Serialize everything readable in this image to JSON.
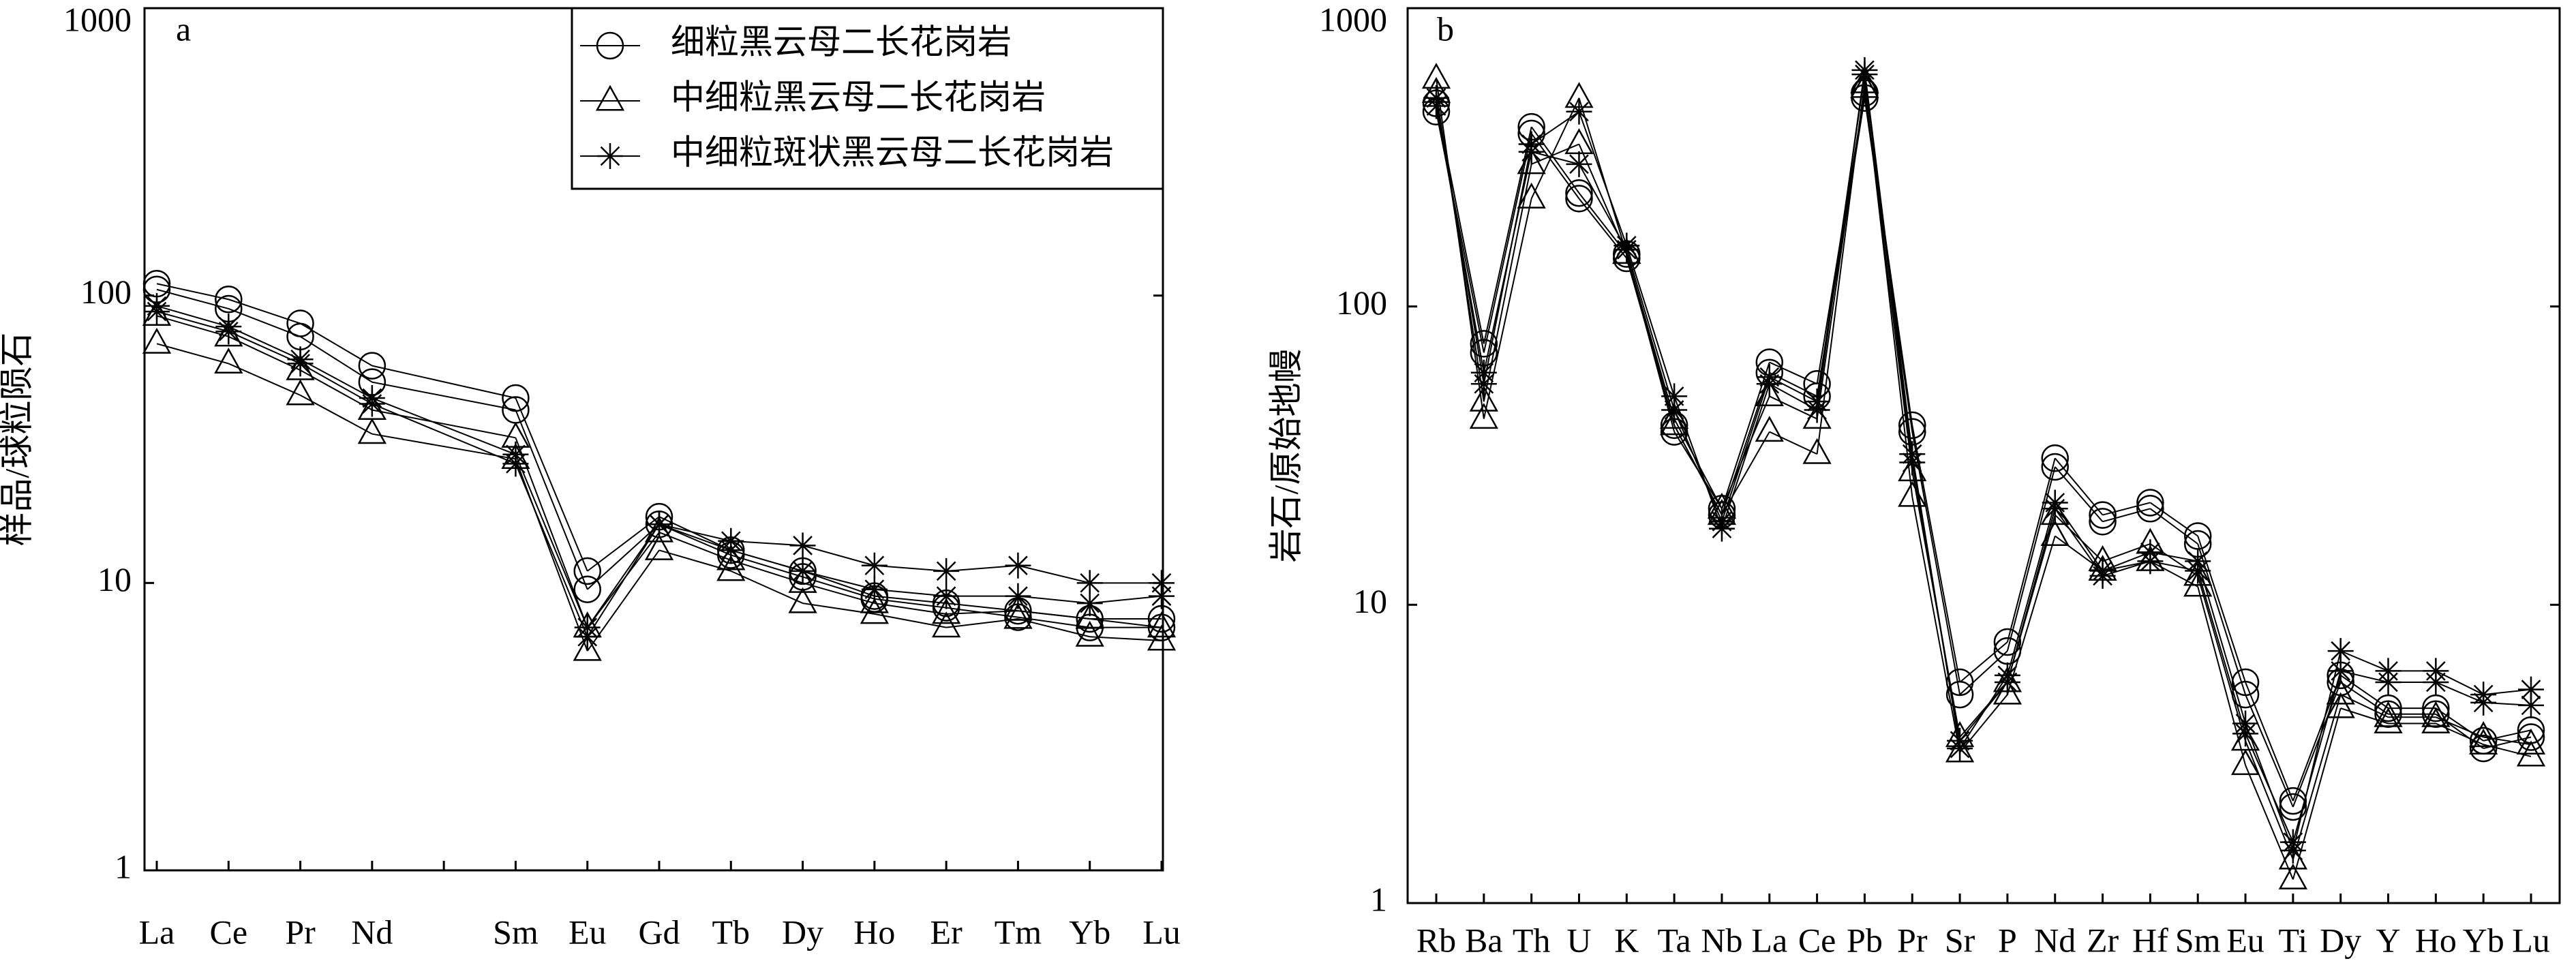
{
  "chart_data": [
    {
      "type": "line",
      "panel_label": "a",
      "ylabel": "样品/球粒陨石",
      "log_scale": true,
      "ylim": [
        1,
        1000
      ],
      "yticks": [
        1,
        10,
        100,
        1000
      ],
      "categories": [
        "La",
        "Ce",
        "Pr",
        "Nd",
        null,
        "Sm",
        "Eu",
        "Gd",
        "Tb",
        "Dy",
        "Ho",
        "Er",
        "Tm",
        "Yb",
        "Lu"
      ],
      "legend": "upper right",
      "series": [
        {
          "name": "细粒黑云母二长花岗岩",
          "marker": "circle",
          "color": "#000000",
          "samples": [
            [
              110,
              97,
              80,
              57,
              null,
              44,
              11,
              17,
              13,
              11,
              9,
              8.5,
              8,
              7.5,
              7.5
            ],
            [
              105,
              90,
              72,
              50,
              null,
              40,
              9.5,
              16,
              12.5,
              10.5,
              8.8,
              8.2,
              7.6,
              7,
              7
            ]
          ]
        },
        {
          "name": "中细粒黑云母二长花岗岩",
          "marker": "triangle",
          "color": "#000000",
          "samples": [
            [
              68,
              58,
              45,
              33,
              null,
              27,
              5.8,
              13,
              11,
              8.5,
              7.8,
              7,
              7.5,
              6.5,
              6.3
            ],
            [
              85,
              72,
              55,
              40,
              null,
              32,
              7,
              15,
              12,
              10,
              8.5,
              7.8,
              8,
              7.5,
              7
            ]
          ]
        },
        {
          "name": "中细粒斑状黑云母二长花岗岩",
          "marker": "asterisk",
          "color": "#000000",
          "samples": [
            [
              92,
              78,
              60,
              44,
              null,
              28,
              7,
              16,
              14,
              13.5,
              11.5,
              11,
              11.5,
              10,
              10
            ],
            [
              88,
              75,
              58,
              42,
              null,
              26,
              6.5,
              16,
              13,
              11,
              9.5,
              9,
              9,
              8.5,
              9
            ]
          ]
        }
      ]
    },
    {
      "type": "line",
      "panel_label": "b",
      "ylabel": "岩石/原始地幔",
      "log_scale": true,
      "ylim": [
        1,
        1000
      ],
      "yticks": [
        1,
        10,
        100,
        1000
      ],
      "categories": [
        "Rb",
        "Ba",
        "Th",
        "U",
        "K",
        "Ta",
        "Nb",
        "La",
        "Ce",
        "Pb",
        "Pr",
        "Sr",
        "P",
        "Nd",
        "Zr",
        "Hf",
        "Sm",
        "Eu",
        "Ti",
        "Dy",
        "Y",
        "Ho",
        "Yb",
        "Lu"
      ],
      "series": [
        {
          "marker": "circle",
          "color": "#000000",
          "samples": [
            [
              480,
              75,
              400,
              240,
              150,
              38,
              21,
              65,
              55,
              520,
              40,
              5.5,
              7.5,
              31,
              20,
              22,
              17,
              5.5,
              2.2,
              5.8,
              4.5,
              4.5,
              3.5,
              3.8
            ],
            [
              450,
              70,
              380,
              230,
              145,
              40,
              20,
              60,
              50,
              500,
              38,
              5,
              7,
              29,
              19,
              21,
              16,
              5,
              2.1,
              5.5,
              4.3,
              4.3,
              3.3,
              3.6
            ]
          ]
        },
        {
          "marker": "triangle",
          "color": "#000000",
          "samples": [
            [
              580,
              42,
              230,
              500,
              150,
              40,
              20,
              38,
              32,
              560,
              23,
              3.2,
              5,
              17,
              13,
              14,
              11.5,
              2.9,
              1.2,
              4.5,
              4,
              4,
              3.4,
              3.1
            ],
            [
              520,
              48,
              300,
              350,
              150,
              42,
              21,
              50,
              42,
              540,
              28,
              3.6,
              5.5,
              20,
              14,
              16,
              12.5,
              3.5,
              1.4,
              5,
              4.2,
              4.2,
              3.6,
              3.4
            ]
          ]
        },
        {
          "marker": "asterisk",
          "color": "#000000",
          "samples": [
            [
              500,
              55,
              350,
              450,
              160,
              50,
              18,
              55,
              45,
              620,
              32,
              3.3,
              5.8,
              22,
              13,
              15,
              14,
              4,
              1.5,
              7,
              6,
              6,
              5,
              5.2
            ],
            [
              470,
              60,
              330,
              300,
              155,
              45,
              19,
              58,
              48,
              600,
              30,
              3.5,
              5.5,
              21,
              12.5,
              14,
              13,
              3.7,
              1.6,
              6,
              5.5,
              5.5,
              4.7,
              4.6
            ]
          ]
        }
      ]
    }
  ]
}
